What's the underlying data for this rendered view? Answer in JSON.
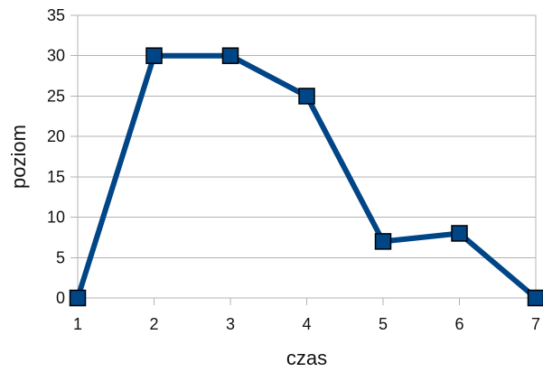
{
  "chart_data": {
    "type": "line",
    "title": "",
    "xlabel": "czas",
    "ylabel": "poziom",
    "x": [
      1,
      2,
      3,
      4,
      5,
      6,
      7
    ],
    "xlim": [
      1,
      7
    ],
    "ylim": [
      0,
      35
    ],
    "xticks": [
      "1",
      "2",
      "3",
      "4",
      "5",
      "6",
      "7"
    ],
    "yticks": [
      "0",
      "5",
      "10",
      "15",
      "20",
      "25",
      "30",
      "35"
    ],
    "grid": "horizontal",
    "legend": "none",
    "series": [
      {
        "values": [
          0,
          30,
          30,
          25,
          7,
          8,
          0
        ],
        "color": "#004586",
        "marker": "square"
      }
    ]
  }
}
